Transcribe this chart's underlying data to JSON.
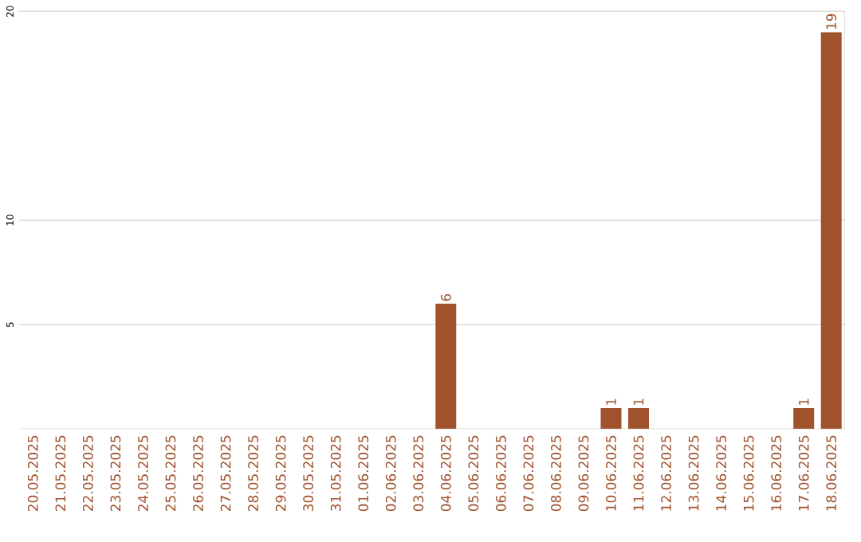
{
  "chart_data": {
    "type": "bar",
    "categories": [
      "20.05.2025",
      "21.05.2025",
      "22.05.2025",
      "23.05.2025",
      "24.05.2025",
      "25.05.2025",
      "26.05.2025",
      "27.05.2025",
      "28.05.2025",
      "29.05.2025",
      "30.05.2025",
      "31.05.2025",
      "01.06.2025",
      "02.06.2025",
      "03.06.2025",
      "04.06.2025",
      "05.06.2025",
      "06.06.2025",
      "07.06.2025",
      "08.06.2025",
      "09.06.2025",
      "10.06.2025",
      "11.06.2025",
      "12.06.2025",
      "13.06.2025",
      "14.06.2025",
      "15.06.2025",
      "16.06.2025",
      "17.06.2025",
      "18.06.2025"
    ],
    "values": [
      0,
      0,
      0,
      0,
      0,
      0,
      0,
      0,
      0,
      0,
      0,
      0,
      0,
      0,
      0,
      6,
      0,
      0,
      0,
      0,
      0,
      1,
      1,
      0,
      0,
      0,
      0,
      0,
      1,
      19
    ],
    "value_labels": [
      null,
      null,
      null,
      null,
      null,
      null,
      null,
      null,
      null,
      null,
      null,
      null,
      null,
      null,
      null,
      "6",
      null,
      null,
      null,
      null,
      null,
      "1",
      "1",
      null,
      null,
      null,
      null,
      null,
      "1",
      "19"
    ],
    "color": "#a0522d",
    "ylim": [
      0,
      20
    ],
    "yticks": [
      5,
      10,
      20
    ],
    "grid": "y"
  }
}
